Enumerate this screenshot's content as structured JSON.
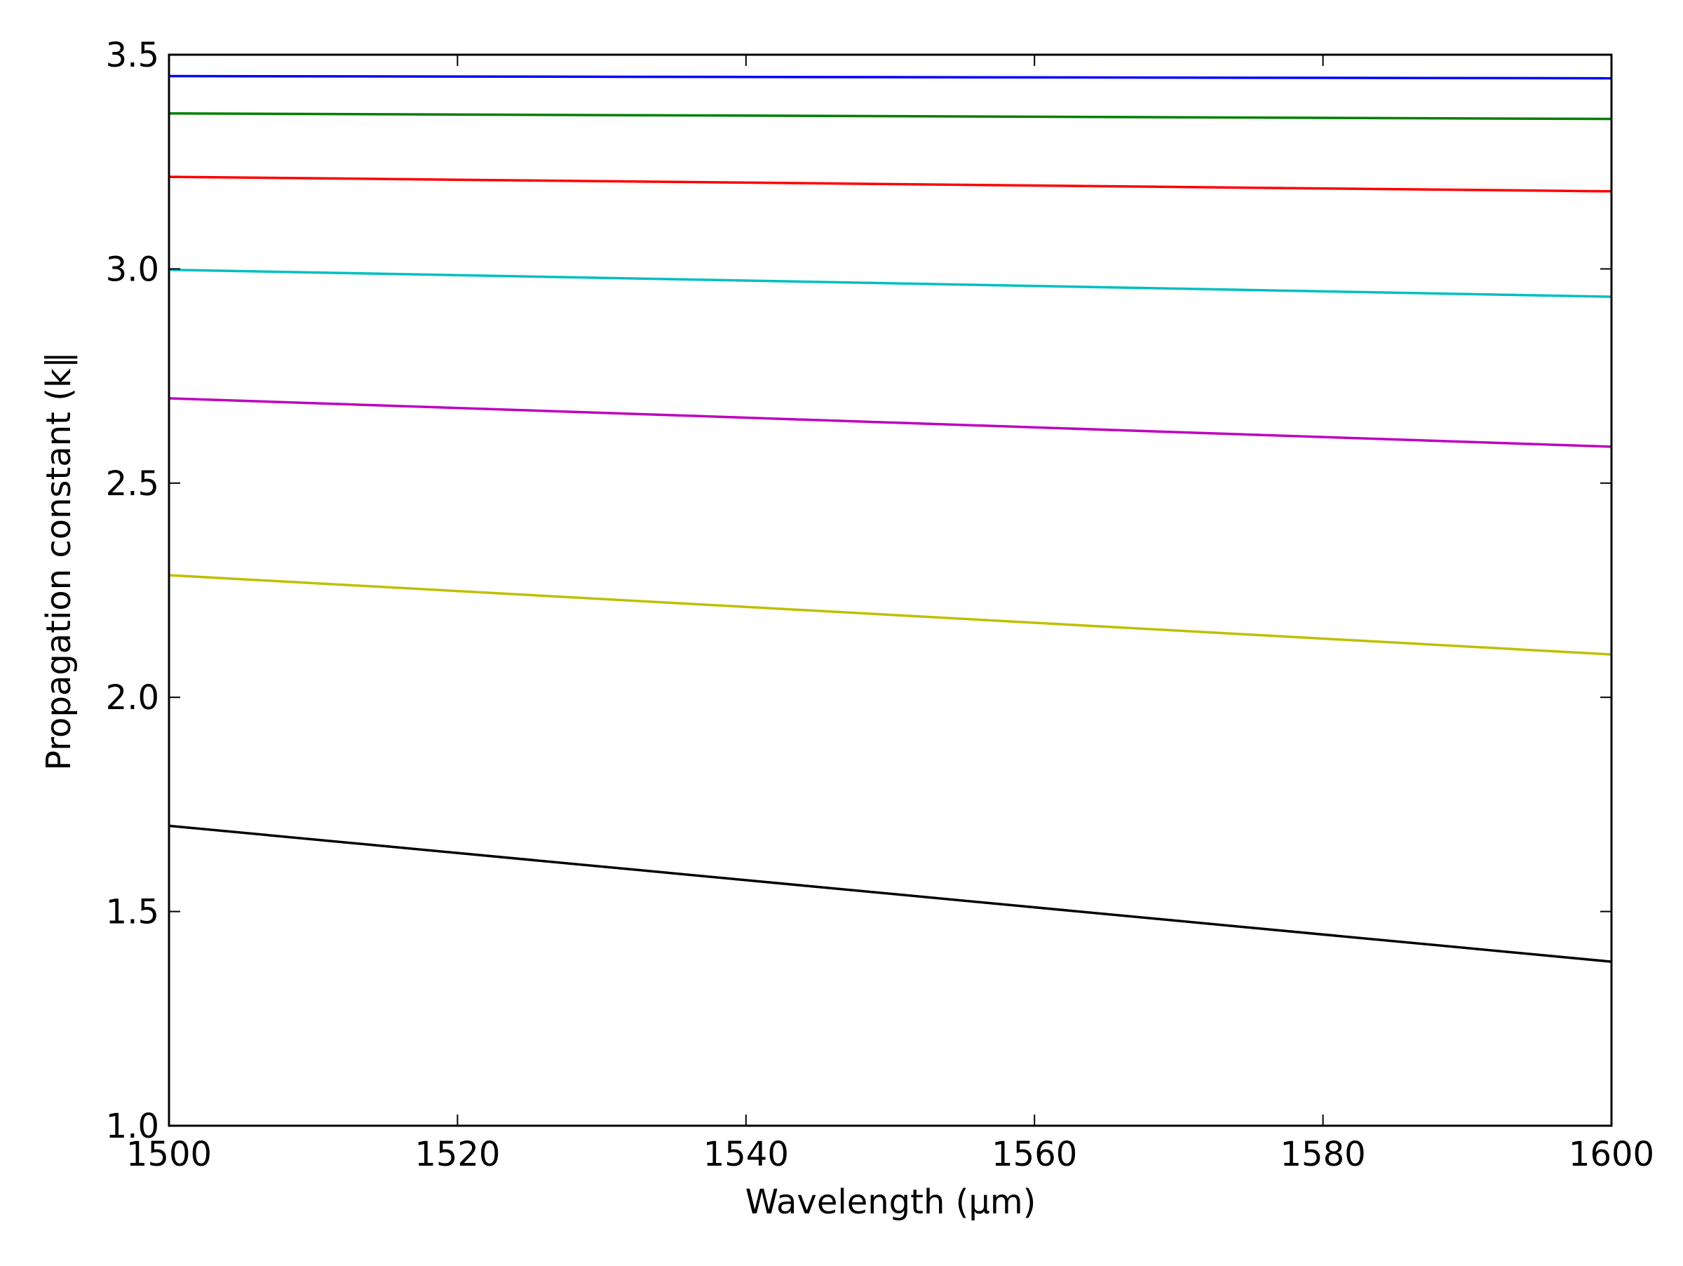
{
  "chart_data": {
    "type": "line",
    "title": "",
    "xlabel": "Wavelength (μm)",
    "ylabel": "Propagation constant (k∥",
    "xlim": [
      1500,
      1600
    ],
    "ylim": [
      1.0,
      3.5
    ],
    "x_ticks": [
      1500,
      1520,
      1540,
      1560,
      1580,
      1600
    ],
    "x_tick_labels": [
      "1500",
      "1520",
      "1540",
      "1560",
      "1580",
      "1600"
    ],
    "y_ticks": [
      1.0,
      1.5,
      2.0,
      2.5,
      3.0,
      3.5
    ],
    "y_tick_labels": [
      "1.0",
      "1.5",
      "2.0",
      "2.5",
      "3.0",
      "3.5"
    ],
    "grid": false,
    "legend": "none",
    "series": [
      {
        "color": "#0000ff",
        "x": [
          1500,
          1600
        ],
        "y": [
          3.45,
          3.445
        ]
      },
      {
        "color": "#007f00",
        "x": [
          1500,
          1600
        ],
        "y": [
          3.363,
          3.35
        ]
      },
      {
        "color": "#ff0000",
        "x": [
          1500,
          1600
        ],
        "y": [
          3.215,
          3.181
        ]
      },
      {
        "color": "#00bfbf",
        "x": [
          1500,
          1600
        ],
        "y": [
          2.998,
          2.935
        ]
      },
      {
        "color": "#bf00bf",
        "x": [
          1500,
          1600
        ],
        "y": [
          2.698,
          2.585
        ]
      },
      {
        "color": "#bfbf00",
        "x": [
          1500,
          1600
        ],
        "y": [
          2.285,
          2.1
        ]
      },
      {
        "color": "#000000",
        "x": [
          1500,
          1600
        ],
        "y": [
          1.7,
          1.383
        ]
      }
    ]
  }
}
